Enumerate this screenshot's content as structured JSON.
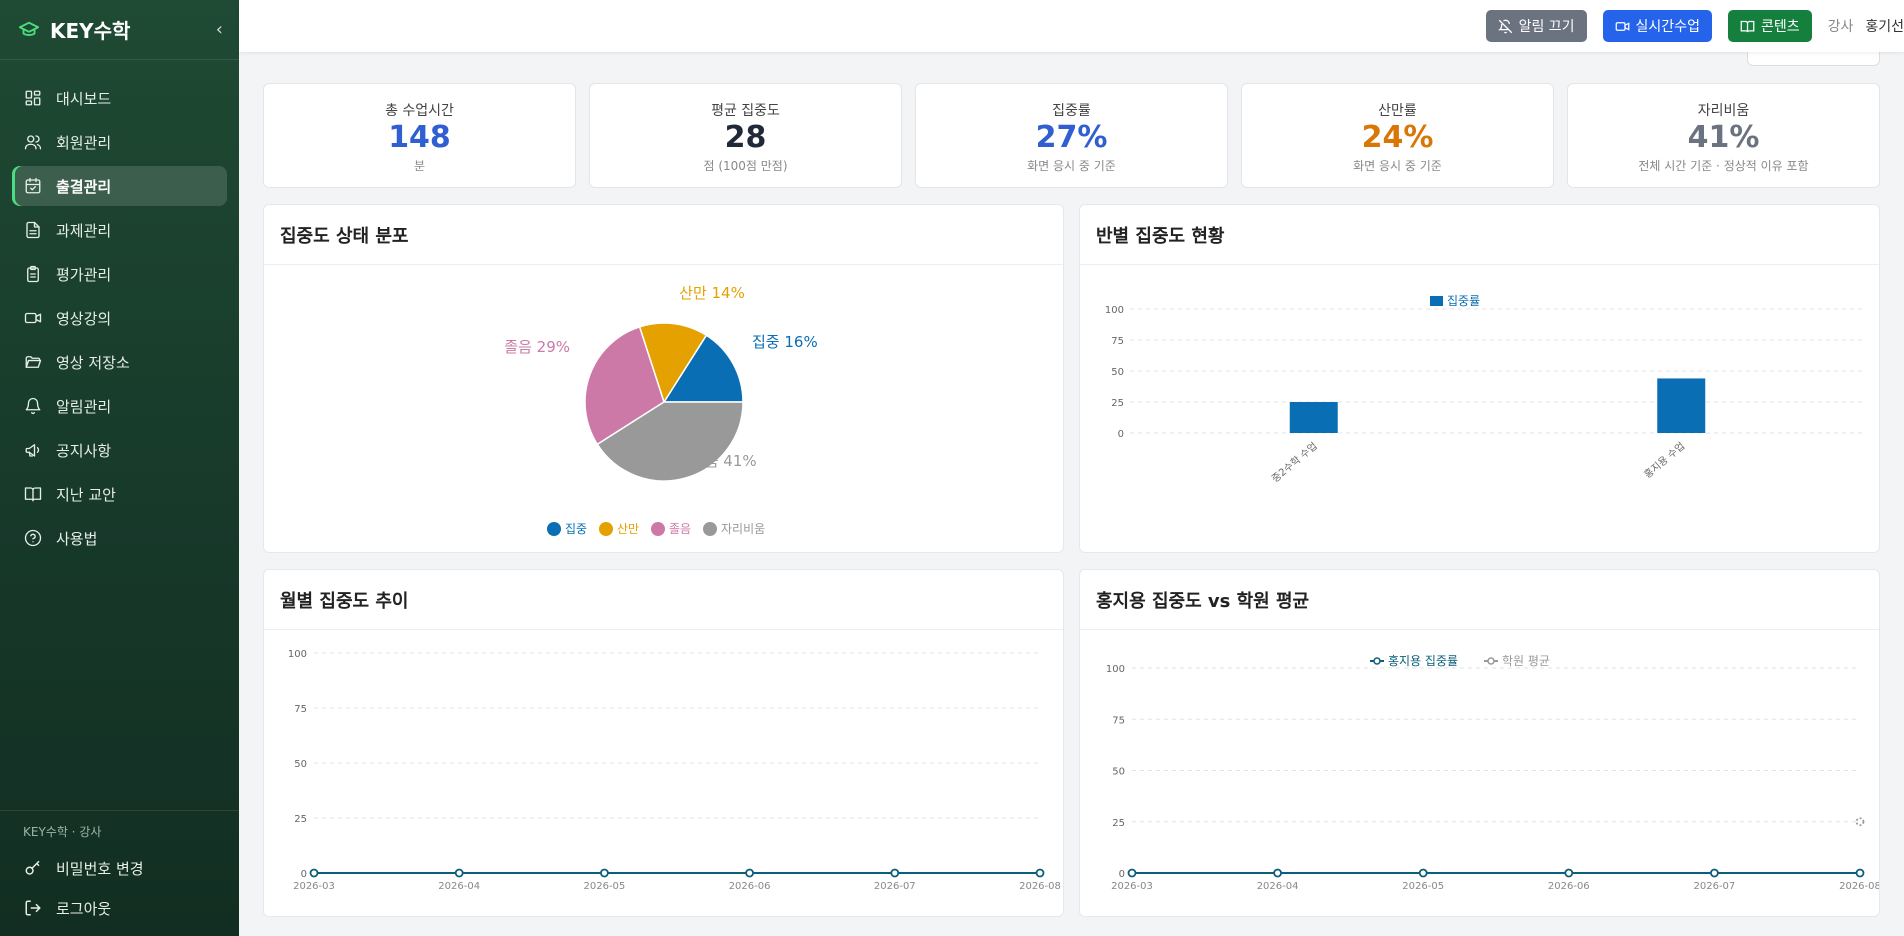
{
  "sidebar": {
    "brand": "KEY수학",
    "items": [
      {
        "label": "대시보드",
        "icon": "dashboard-icon"
      },
      {
        "label": "회원관리",
        "icon": "users-icon"
      },
      {
        "label": "출결관리",
        "icon": "calendar-check-icon",
        "active": true
      },
      {
        "label": "과제관리",
        "icon": "file-text-icon"
      },
      {
        "label": "평가관리",
        "icon": "clipboard-icon"
      },
      {
        "label": "영상강의",
        "icon": "video-icon"
      },
      {
        "label": "영상 저장소",
        "icon": "folder-open-icon"
      },
      {
        "label": "알림관리",
        "icon": "bell-icon"
      },
      {
        "label": "공지사항",
        "icon": "megaphone-icon"
      },
      {
        "label": "지난 교안",
        "icon": "book-open-icon"
      },
      {
        "label": "사용법",
        "icon": "help-circle-icon"
      }
    ],
    "footer_caption": "KEY수학 · 강사",
    "change_password": "비밀번호 변경",
    "logout": "로그아웃"
  },
  "topbar": {
    "mute_alerts": "알림 끄기",
    "live_class": "실시간수업",
    "contents": "콘텐츠",
    "role": "강사",
    "user_name": "홍기선"
  },
  "stats": [
    {
      "label": "총 수업시간",
      "value": "148",
      "sub": "분",
      "color": "#2f5fd0"
    },
    {
      "label": "평균 집중도",
      "value": "28",
      "sub": "점 (100점 만점)",
      "color": "#1f2937"
    },
    {
      "label": "집중률",
      "value": "27%",
      "sub": "화면 응시 중 기준",
      "color": "#2f5fd0"
    },
    {
      "label": "산만률",
      "value": "24%",
      "sub": "화면 응시 중 기준",
      "color": "#d97706"
    },
    {
      "label": "자리비움",
      "value": "41%",
      "sub": "전체 시간 기준 · 정상적 이유 포함",
      "color": "#6b7280"
    }
  ],
  "cards": {
    "pie_title": "집중도 상태 분포",
    "class_title": "반별 집중도 현황",
    "monthly_title": "월별 집중도 추이",
    "compare_title": "홍지용 집중도 vs 학원 평균"
  },
  "chart_data": [
    {
      "type": "pie",
      "title": "집중도 상태 분포",
      "slices": [
        {
          "name": "집중",
          "value": 16,
          "color": "#0a6eb4"
        },
        {
          "name": "산만",
          "value": 14,
          "color": "#e5a100"
        },
        {
          "name": "졸음",
          "value": 29,
          "color": "#cc79a7"
        },
        {
          "name": "자리비움",
          "value": 41,
          "color": "#999999"
        }
      ],
      "labels": [
        "집중 16%",
        "산만 14%",
        "졸음 29%",
        "자리비움 41%"
      ],
      "legend_position": "bottom"
    },
    {
      "type": "bar",
      "title": "반별 집중도 현황",
      "categories": [
        "중2수학 수업",
        "홍지용 수업"
      ],
      "series": [
        {
          "name": "집중률",
          "values": [
            25,
            44
          ],
          "color": "#0a6eb4"
        }
      ],
      "ylim": [
        0,
        100
      ],
      "yticks": [
        0,
        25,
        50,
        75,
        100
      ],
      "legend_position": "top"
    },
    {
      "type": "line",
      "title": "월별 집중도 추이",
      "x": [
        "2026-03",
        "2026-04",
        "2026-05",
        "2026-06",
        "2026-07",
        "2026-08"
      ],
      "series": [
        {
          "values": [
            0,
            0,
            0,
            0,
            0,
            0
          ],
          "color": "#0b5f7a"
        }
      ],
      "ylim": [
        0,
        100
      ],
      "yticks": [
        0,
        25,
        50,
        75,
        100
      ]
    },
    {
      "type": "line",
      "title": "홍지용 집중도 vs 학원 평균",
      "x": [
        "2026-03",
        "2026-04",
        "2026-05",
        "2026-06",
        "2026-07",
        "2026-08"
      ],
      "series": [
        {
          "name": "홍지용 집중률",
          "values": [
            0,
            0,
            0,
            0,
            0,
            0
          ],
          "color": "#0b5f7a"
        },
        {
          "name": "학원 평균",
          "values": [
            null,
            null,
            null,
            null,
            null,
            25
          ],
          "color": "#999999"
        }
      ],
      "ylim": [
        0,
        100
      ],
      "yticks": [
        0,
        25,
        50,
        75,
        100
      ],
      "legend_position": "top"
    }
  ]
}
